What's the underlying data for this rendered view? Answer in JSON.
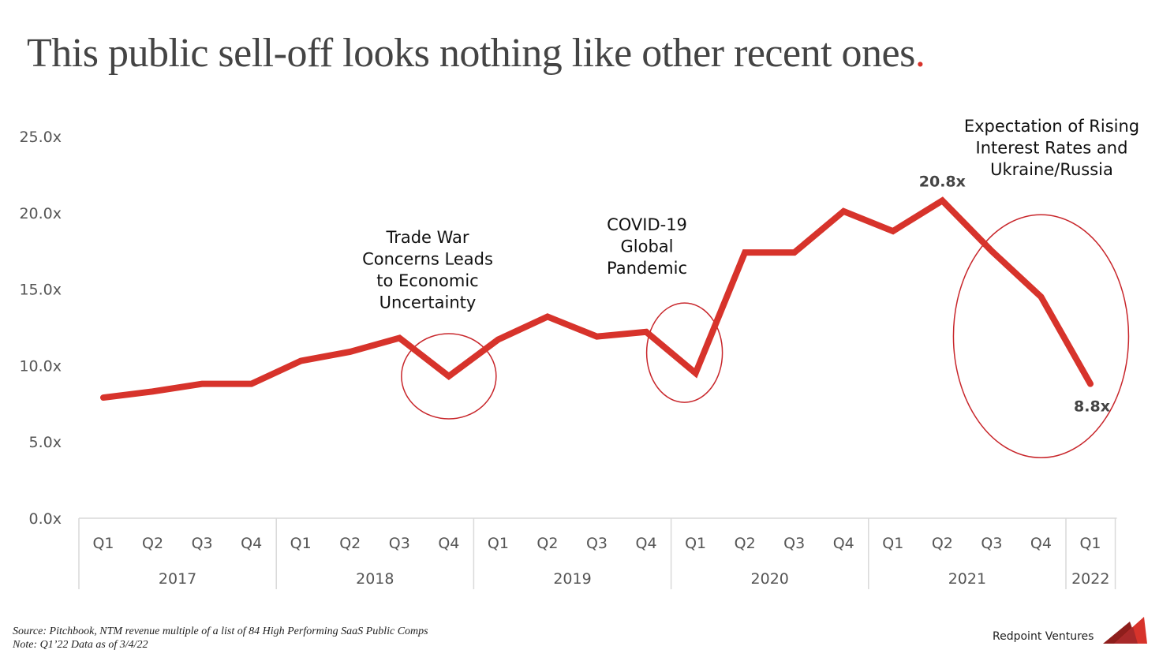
{
  "slide": {
    "title": "This public sell-off looks nothing like other recent ones",
    "title_accent": ".",
    "source_line": "Source: Pitchbook, NTM revenue multiple of a list of 84 High Performing SaaS Public Comps",
    "note_line": "Note: Q1’22 Data as of 3/4/22",
    "brand": "Redpoint Ventures",
    "accent_color": "#d7332b"
  },
  "chart_data": {
    "type": "line",
    "title": "This public sell-off looks nothing like other recent ones.",
    "xlabel": "",
    "ylabel": "",
    "ylim": [
      0,
      25
    ],
    "yticks": [
      0,
      5,
      10,
      15,
      20,
      25
    ],
    "ytick_labels": [
      "0.0x",
      "5.0x",
      "10.0x",
      "15.0x",
      "20.0x",
      "25.0x"
    ],
    "grid": false,
    "categories": [
      "Q1",
      "Q2",
      "Q3",
      "Q4",
      "Q1",
      "Q2",
      "Q3",
      "Q4",
      "Q1",
      "Q2",
      "Q3",
      "Q4",
      "Q1",
      "Q2",
      "Q3",
      "Q4",
      "Q1",
      "Q2",
      "Q3",
      "Q4",
      "Q1"
    ],
    "year_groups": [
      {
        "label": "2017",
        "count": 4
      },
      {
        "label": "2018",
        "count": 4
      },
      {
        "label": "2019",
        "count": 4
      },
      {
        "label": "2020",
        "count": 4
      },
      {
        "label": "2021",
        "count": 4
      },
      {
        "label": "2022",
        "count": 1
      }
    ],
    "series": [
      {
        "name": "NTM Revenue Multiple",
        "color": "#d7332b",
        "values": [
          7.9,
          8.3,
          8.8,
          8.8,
          10.3,
          10.9,
          11.8,
          9.3,
          11.7,
          13.2,
          11.9,
          12.2,
          9.5,
          17.4,
          17.4,
          20.1,
          18.8,
          20.8,
          17.5,
          14.5,
          8.8
        ]
      }
    ],
    "data_labels": [
      {
        "index": 17,
        "text": "20.8x",
        "position": "above"
      },
      {
        "index": 20,
        "text": "8.8x",
        "position": "below"
      }
    ],
    "annotations": [
      {
        "lines": [
          "Trade War",
          "Concerns Leads",
          "to Economic",
          "Uncertainty"
        ],
        "highlight_index": 7
      },
      {
        "lines": [
          "COVID-19",
          "Global",
          "Pandemic"
        ],
        "highlight_index": 12
      },
      {
        "lines": [
          "Expectation of Rising",
          "Interest Rates and",
          "Ukraine/Russia"
        ],
        "highlight_index": 19
      }
    ],
    "legend": "none"
  }
}
